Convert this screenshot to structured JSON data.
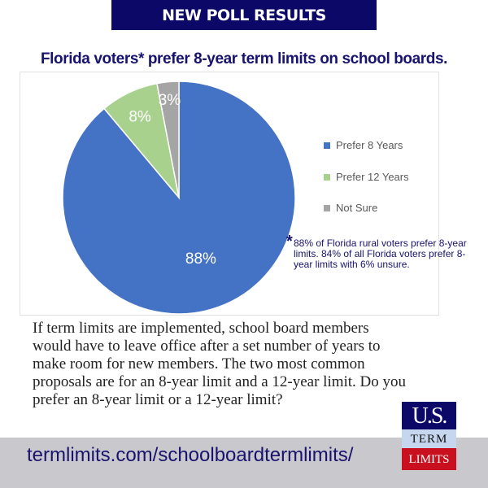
{
  "banner": "NEW POLL RESULTS",
  "title": "Florida voters* prefer 8-year term limits on school boards.",
  "chart_data": {
    "type": "pie",
    "categories": [
      "Prefer 8 Years",
      "Prefer 12 Years",
      "Not Sure"
    ],
    "values": [
      88,
      8,
      3
    ],
    "labels": [
      "88%",
      "8%",
      "3%"
    ],
    "colors": [
      "#4472c4",
      "#a9d18e",
      "#a5a5a5"
    ],
    "legend_position": "right"
  },
  "note": {
    "asterisk": "*",
    "text": "88% of Florida rural voters prefer 8-year limits. 84% of all Florida voters prefer 8-year limits with 6% unsure."
  },
  "question": "If term limits are implemented, school board members would have to leave office after a set number of years to make room for new members. The two most common proposals are for an 8-year limit and a 12-year limit. Do you prefer an 8-year limit or a 12-year limit?",
  "footer": {
    "url": "termlimits.com/schoolboardtermlimits/"
  },
  "logo": {
    "line1": "U.S.",
    "line2": "TERM",
    "line3": "LIMITS"
  }
}
